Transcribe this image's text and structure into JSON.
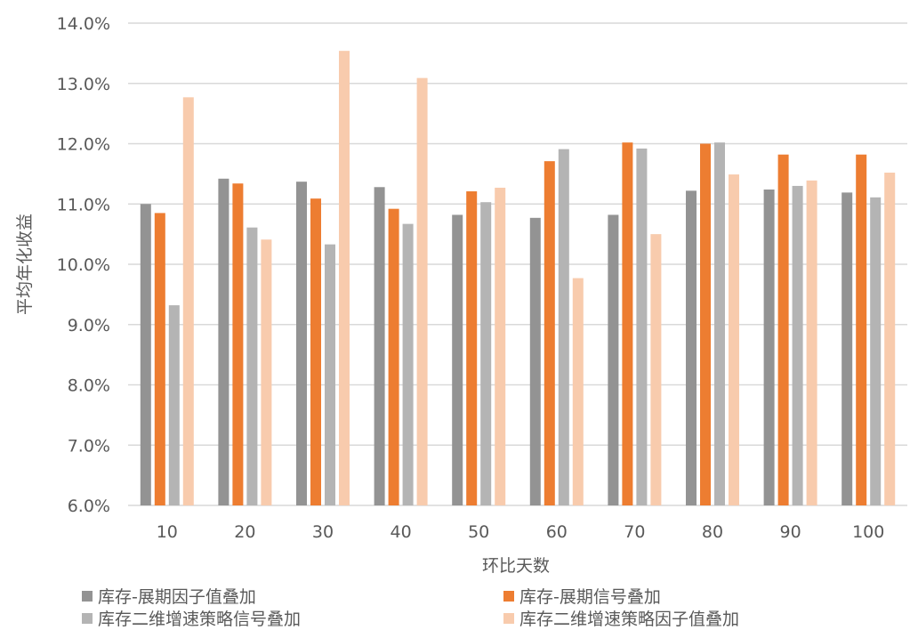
{
  "chart_data": {
    "type": "bar",
    "title": "",
    "xlabel": "环比天数",
    "ylabel": "平均年化收益",
    "ylim": [
      6.0,
      14.0
    ],
    "yticks": [
      "6.0%",
      "7.0%",
      "8.0%",
      "9.0%",
      "10.0%",
      "11.0%",
      "12.0%",
      "13.0%",
      "14.0%"
    ],
    "grid": true,
    "legend_position": "bottom",
    "categories": [
      "10",
      "20",
      "30",
      "40",
      "50",
      "60",
      "70",
      "80",
      "90",
      "100"
    ],
    "series": [
      {
        "name": "库存-展期因子值叠加",
        "color": "#939393",
        "values": [
          11.0,
          11.42,
          11.37,
          11.28,
          10.82,
          10.77,
          10.82,
          11.22,
          11.24,
          11.19
        ]
      },
      {
        "name": "库存-展期信号叠加",
        "color": "#ED7D31",
        "values": [
          10.85,
          11.34,
          11.09,
          10.92,
          11.21,
          11.71,
          12.02,
          12.0,
          11.82,
          11.82
        ]
      },
      {
        "name": "库存二维增速策略信号叠加",
        "color": "#B4B4B4",
        "values": [
          9.32,
          10.61,
          10.33,
          10.67,
          11.03,
          11.91,
          11.92,
          12.02,
          11.3,
          11.11
        ]
      },
      {
        "name": "库存二维增速策略因子值叠加",
        "color": "#F8CBAD",
        "values": [
          12.77,
          10.41,
          13.54,
          13.09,
          11.27,
          9.77,
          10.5,
          11.49,
          11.39,
          11.52
        ]
      }
    ]
  }
}
